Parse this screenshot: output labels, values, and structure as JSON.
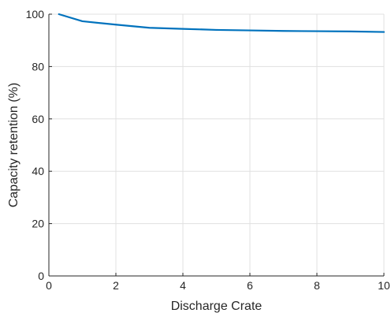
{
  "chart_data": {
    "type": "line",
    "title": "",
    "xlabel": "Discharge Crate",
    "ylabel": "Capacity retention (%)",
    "xlim": [
      0,
      10
    ],
    "ylim": [
      0,
      100
    ],
    "xticks": [
      0,
      2,
      4,
      6,
      8,
      10
    ],
    "yticks": [
      0,
      20,
      40,
      60,
      80,
      100
    ],
    "grid": true,
    "legend": "none",
    "series": [
      {
        "color": "#0072BD",
        "x": [
          0.3,
          1,
          2,
          3,
          4,
          5,
          6,
          7,
          8,
          9,
          10
        ],
        "y": [
          100,
          97.3,
          96.0,
          94.8,
          94.4,
          94.0,
          93.8,
          93.6,
          93.5,
          93.4,
          93.2
        ]
      }
    ]
  }
}
